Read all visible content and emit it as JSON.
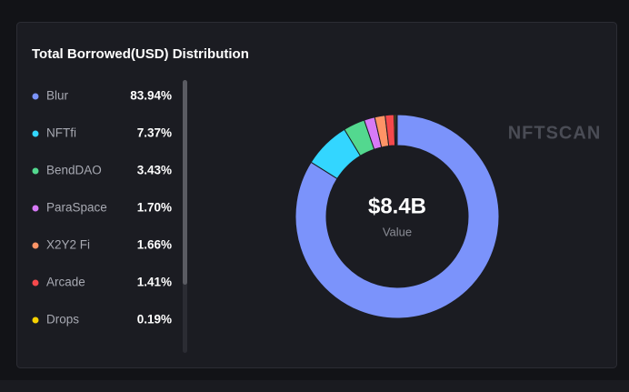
{
  "chart_data": {
    "type": "pie",
    "title": "Total Borrowed(USD) Distribution",
    "center_value": "$8.4B",
    "center_label": "Value",
    "watermark": "NFTSCAN",
    "categories": [
      "Blur",
      "NFTfi",
      "BendDAO",
      "ParaSpace",
      "X2Y2 Fi",
      "Arcade",
      "Drops"
    ],
    "values": [
      83.94,
      7.37,
      3.43,
      1.7,
      1.66,
      1.41,
      0.19
    ],
    "value_labels": [
      "83.94%",
      "7.37%",
      "3.43%",
      "1.70%",
      "1.66%",
      "1.41%",
      "0.19%"
    ],
    "colors": [
      "#7b93fb",
      "#33d6ff",
      "#53d88f",
      "#d77af7",
      "#ff9466",
      "#f5494c",
      "#f6d100"
    ],
    "legend": "left"
  }
}
